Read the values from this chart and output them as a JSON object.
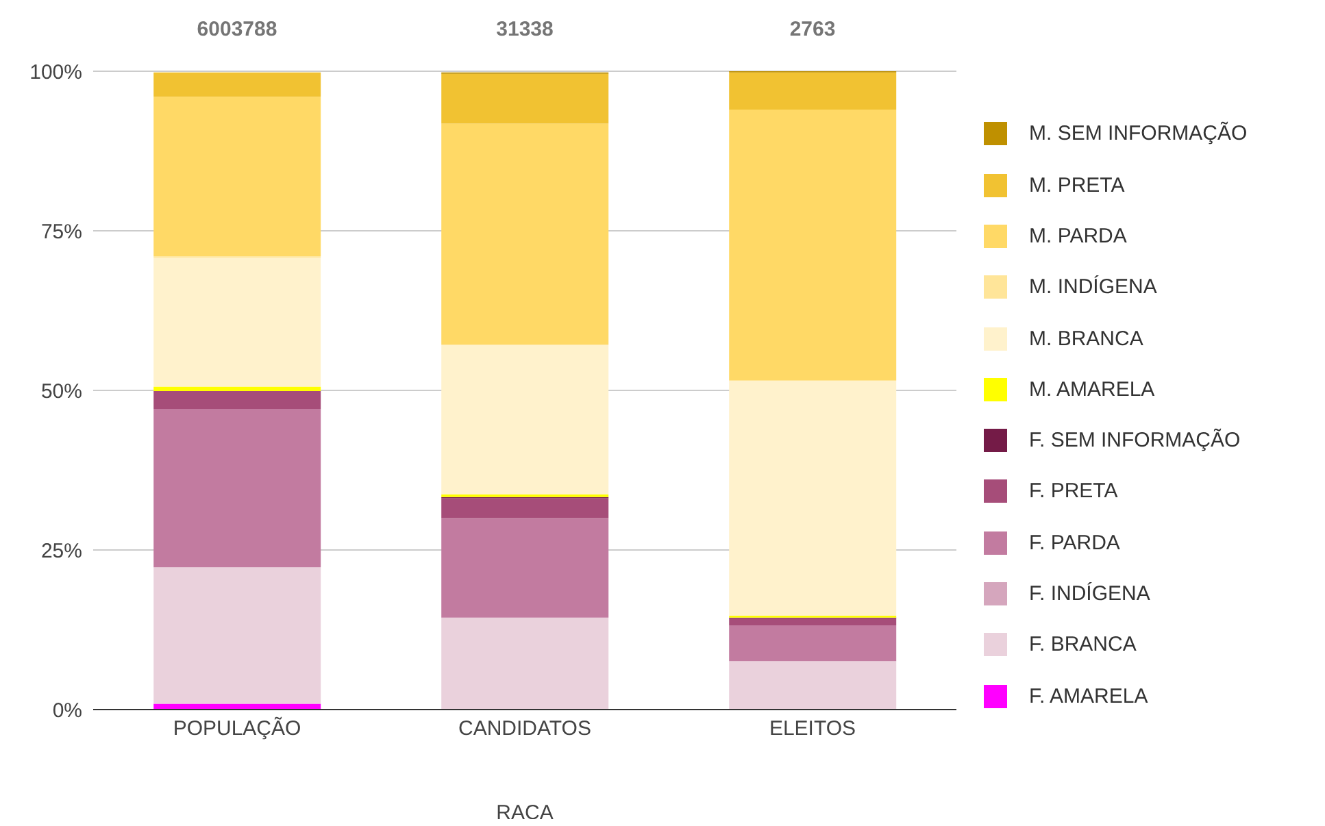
{
  "chart_data": {
    "type": "bar",
    "stacked": true,
    "xlabel": "RACA",
    "categories": [
      "POPULAÇÃO",
      "CANDIDATOS",
      "ELEITOS"
    ],
    "ylim": [
      0,
      100
    ],
    "yticks": [
      {
        "value": 0,
        "label": "0%"
      },
      {
        "value": 25,
        "label": "25%"
      },
      {
        "value": 50,
        "label": "50%"
      },
      {
        "value": 75,
        "label": "75%"
      },
      {
        "value": 100,
        "label": "100%"
      }
    ],
    "grid": "y",
    "legend": "right",
    "annotations": [
      {
        "text": "6003788",
        "x": "POPULAÇÃO",
        "y": 100
      },
      {
        "text": "31338",
        "x": "CANDIDATOS",
        "y": 100
      },
      {
        "text": "2763",
        "x": "ELEITOS",
        "y": 100
      }
    ],
    "series": [
      {
        "name": "F. AMARELA",
        "color": "#ff00ff",
        "values": [
          0.9,
          null,
          0.0
        ]
      },
      {
        "name": "F. BRANCA",
        "color": "#ead1dc",
        "values": [
          21.4,
          14.4,
          7.6
        ]
      },
      {
        "name": "F. INDÍGENA",
        "color": "#d5a6bd",
        "values": [
          null,
          null,
          0.0
        ]
      },
      {
        "name": "F. PARDA",
        "color": "#c27ba0",
        "values": [
          24.8,
          15.6,
          5.6
        ]
      },
      {
        "name": "F. PRETA",
        "color": "#a64d79",
        "values": [
          2.8,
          3.1,
          1.1
        ]
      },
      {
        "name": "F. SEM INFORMAÇÃO",
        "color": "#741b47",
        "values": [
          0.0,
          0.2,
          0.1
        ]
      },
      {
        "name": "M. AMARELA",
        "color": "#ffff00",
        "values": [
          0.7,
          0.4,
          0.3
        ]
      },
      {
        "name": "M. BRANCA",
        "color": "#fff2cc",
        "values": [
          20.2,
          23.4,
          36.8
        ]
      },
      {
        "name": "M. INDÍGENA",
        "color": "#ffe599",
        "values": [
          0.2,
          0.1,
          0.1
        ]
      },
      {
        "name": "M. PARDA",
        "color": "#ffd966",
        "values": [
          25.0,
          34.6,
          42.4
        ]
      },
      {
        "name": "M. PRETA",
        "color": "#f1c232",
        "values": [
          3.8,
          7.8,
          5.8
        ]
      },
      {
        "name": "M. SEM INFORMAÇÃO",
        "color": "#bf9000",
        "values": [
          0.0,
          0.2,
          0.2
        ]
      }
    ]
  }
}
